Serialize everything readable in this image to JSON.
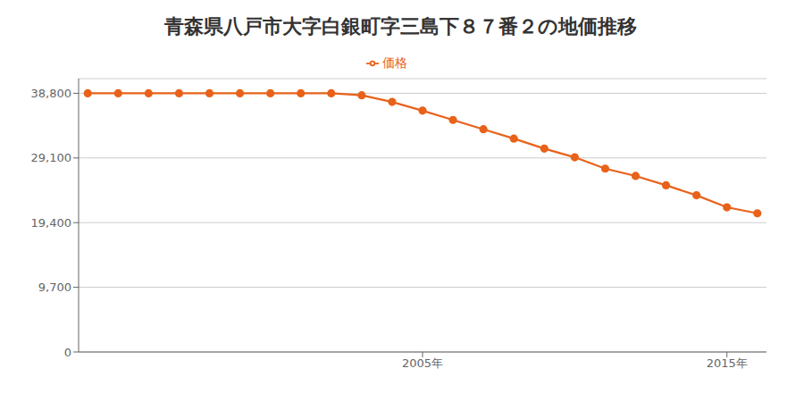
{
  "chart_data": {
    "type": "line",
    "title": "青森県八戸市大字白銀町字三島下８７番２の地価推移",
    "x": [
      1994,
      1995,
      1996,
      1997,
      1998,
      1999,
      2000,
      2001,
      2002,
      2003,
      2004,
      2005,
      2006,
      2007,
      2008,
      2009,
      2010,
      2011,
      2012,
      2013,
      2014,
      2015,
      2016
    ],
    "series": [
      {
        "name": "価格",
        "color": "#e8621a",
        "marker": "circle",
        "values": [
          38800,
          38800,
          38800,
          38800,
          38800,
          38800,
          38800,
          38800,
          38800,
          38500,
          37500,
          36200,
          34800,
          33400,
          32000,
          30500,
          29200,
          27500,
          26400,
          25000,
          23500,
          21700,
          20800
        ]
      }
    ],
    "xlim": [
      1993.7,
      2016.3
    ],
    "xticks": [
      {
        "value": 2005,
        "label": "2005年"
      },
      {
        "value": 2015,
        "label": "2015年"
      }
    ],
    "ylim": [
      0,
      41000
    ],
    "yticks": [
      0,
      {
        "value": 9700,
        "label": "9,700"
      },
      {
        "value": 19400,
        "label": "19,400"
      },
      {
        "value": 29100,
        "label": "29,100"
      },
      {
        "value": 38800,
        "label": "38,800"
      }
    ],
    "grid": "y",
    "legend": "top"
  }
}
